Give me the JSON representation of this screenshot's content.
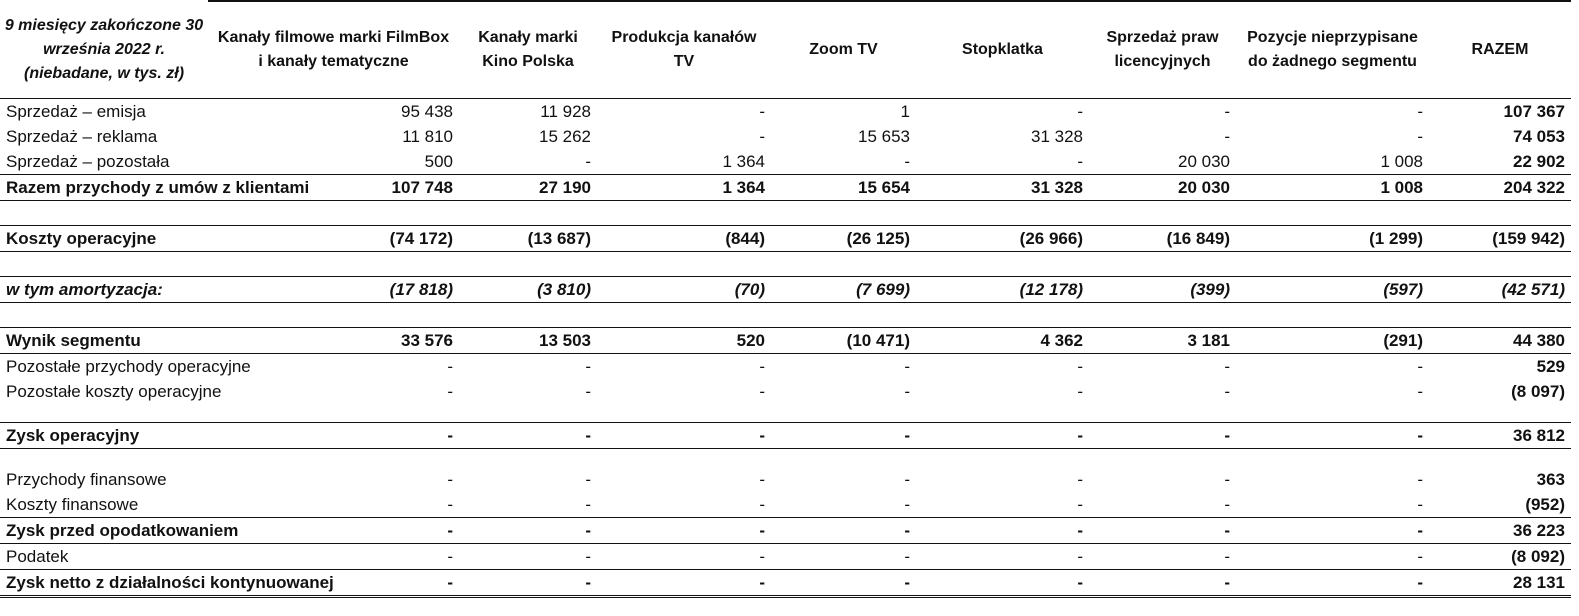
{
  "header": {
    "corner": "9 miesięcy zakończone 30 września 2022 r. (niebadane, w tys. zł)",
    "columns": [
      "Kanały filmowe marki FilmBox i kanały tematyczne",
      "Kanały marki Kino Polska",
      "Produkcja kanałów TV",
      "Zoom TV",
      "Stopklatka",
      "Sprzedaż praw licencyjnych",
      "Pozycje nieprzypisane do żadnego segmentu",
      "RAZEM"
    ]
  },
  "rows": {
    "sales_broadcast": {
      "label": "Sprzedaż – emisja",
      "values": [
        "95 438",
        "11 928",
        "-",
        "1",
        "-",
        "-",
        "-",
        "107 367"
      ]
    },
    "sales_advertising": {
      "label": "Sprzedaż – reklama",
      "values": [
        "11 810",
        "15 262",
        "-",
        "15 653",
        "31 328",
        "-",
        "-",
        "74 053"
      ]
    },
    "sales_other": {
      "label": "Sprzedaż – pozostała",
      "values": [
        "500",
        "-",
        "1 364",
        "-",
        "-",
        "20 030",
        "1 008",
        "22 902"
      ]
    },
    "revenue_total": {
      "label": "Razem przychody z umów z klientami",
      "values": [
        "107 748",
        "27 190",
        "1 364",
        "15 654",
        "31 328",
        "20 030",
        "1 008",
        "204 322"
      ]
    },
    "operating_costs": {
      "label": "Koszty operacyjne",
      "values": [
        "(74 172)",
        "(13 687)",
        "(844)",
        "(26 125)",
        "(26 966)",
        "(16 849)",
        "(1 299)",
        "(159 942)"
      ]
    },
    "depreciation": {
      "label": "w tym amortyzacja:",
      "values": [
        "(17 818)",
        "(3 810)",
        "(70)",
        "(7 699)",
        "(12 178)",
        "(399)",
        "(597)",
        "(42 571)"
      ]
    },
    "segment_result": {
      "label": "Wynik segmentu",
      "values": [
        "33 576",
        "13 503",
        "520",
        "(10 471)",
        "4 362",
        "3 181",
        "(291)",
        "44 380"
      ]
    },
    "other_op_income": {
      "label": "Pozostałe przychody operacyjne",
      "values": [
        "-",
        "-",
        "-",
        "-",
        "-",
        "-",
        "-",
        "529"
      ]
    },
    "other_op_costs": {
      "label": "Pozostałe koszty operacyjne",
      "values": [
        "-",
        "-",
        "-",
        "-",
        "-",
        "-",
        "-",
        "(8 097)"
      ]
    },
    "operating_profit": {
      "label": "Zysk operacyjny",
      "values": [
        "-",
        "-",
        "-",
        "-",
        "-",
        "-",
        "-",
        "36 812"
      ]
    },
    "finance_income": {
      "label": "Przychody finansowe",
      "values": [
        "-",
        "-",
        "-",
        "-",
        "-",
        "-",
        "-",
        "363"
      ]
    },
    "finance_costs": {
      "label": "Koszty finansowe",
      "values": [
        "-",
        "-",
        "-",
        "-",
        "-",
        "-",
        "-",
        "(952)"
      ]
    },
    "profit_before_tax": {
      "label": "Zysk przed opodatkowaniem",
      "values": [
        "-",
        "-",
        "-",
        "-",
        "-",
        "-",
        "-",
        "36 223"
      ]
    },
    "tax": {
      "label": "Podatek",
      "values": [
        "-",
        "-",
        "-",
        "-",
        "-",
        "-",
        "-",
        "(8 092)"
      ]
    },
    "net_profit": {
      "label": "Zysk netto z działalności kontynuowanej",
      "values": [
        "-",
        "-",
        "-",
        "-",
        "-",
        "-",
        "-",
        "28 131"
      ]
    }
  }
}
